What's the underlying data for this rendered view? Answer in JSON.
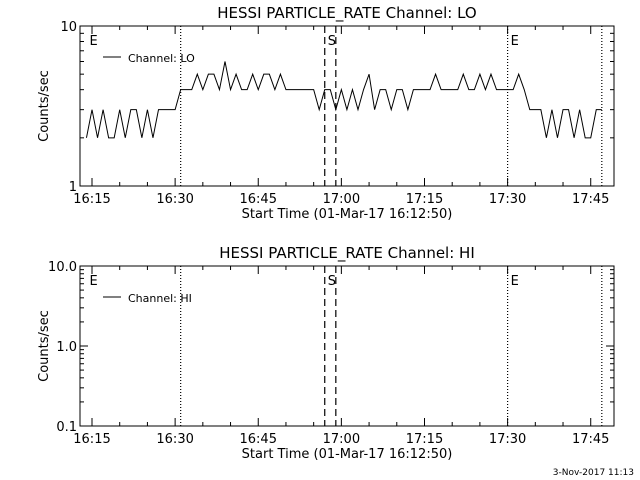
{
  "footer_date": "3-Nov-2017 11:13",
  "chart_data": [
    {
      "type": "line",
      "title": "HESSI PARTICLE_RATE Channel: LO",
      "xlabel": "Start Time (01-Mar-17 16:12:50)",
      "ylabel": "Counts/sec",
      "yscale": "log",
      "ylim": [
        1,
        10
      ],
      "xlim_minutes": [
        16.2,
        17.82
      ],
      "xtick_labels": [
        "16:15",
        "16:30",
        "16:45",
        "17:00",
        "17:15",
        "17:30",
        "17:45"
      ],
      "ytick_labels": [
        {
          "value": 1,
          "label": "1"
        },
        {
          "value": 10,
          "label": "10"
        }
      ],
      "legend": {
        "label": "Channel: LO",
        "placement": "top-left"
      },
      "markers": [
        {
          "label": "E",
          "time": "16:14",
          "style": "none"
        },
        {
          "label": "",
          "time": "16:31",
          "style": "dotted"
        },
        {
          "label": "S",
          "time": "16:57",
          "style": "dashed"
        },
        {
          "label": "",
          "time": "16:59",
          "style": "dashed"
        },
        {
          "label": "E",
          "time": "17:30",
          "style": "dotted"
        },
        {
          "label": "",
          "time": "17:47",
          "style": "dotted"
        }
      ],
      "series": [
        {
          "name": "Channel: LO",
          "x": [
            "16:14",
            "16:15",
            "16:16",
            "16:17",
            "16:18",
            "16:19",
            "16:20",
            "16:21",
            "16:22",
            "16:23",
            "16:24",
            "16:25",
            "16:26",
            "16:27",
            "16:28",
            "16:29",
            "16:30",
            "16:31",
            "16:32",
            "16:33",
            "16:34",
            "16:35",
            "16:36",
            "16:37",
            "16:38",
            "16:39",
            "16:40",
            "16:41",
            "16:42",
            "16:43",
            "16:44",
            "16:45",
            "16:46",
            "16:47",
            "16:48",
            "16:49",
            "16:50",
            "16:51",
            "16:52",
            "16:53",
            "16:54",
            "16:55",
            "16:56",
            "16:57",
            "16:58",
            "16:59",
            "17:00",
            "17:01",
            "17:02",
            "17:03",
            "17:04",
            "17:05",
            "17:06",
            "17:07",
            "17:08",
            "17:09",
            "17:10",
            "17:11",
            "17:12",
            "17:13",
            "17:14",
            "17:15",
            "17:16",
            "17:17",
            "17:18",
            "17:19",
            "17:20",
            "17:21",
            "17:22",
            "17:23",
            "17:24",
            "17:25",
            "17:26",
            "17:27",
            "17:28",
            "17:29",
            "17:30",
            "17:31",
            "17:32",
            "17:33",
            "17:34",
            "17:35",
            "17:36",
            "17:37",
            "17:38",
            "17:39",
            "17:40",
            "17:41",
            "17:42",
            "17:43",
            "17:44",
            "17:45",
            "17:46",
            "17:47"
          ],
          "y": [
            2,
            3,
            2,
            3,
            2,
            2,
            3,
            2,
            3,
            3,
            2,
            3,
            2,
            3,
            3,
            3,
            3,
            4,
            4,
            4,
            5,
            4,
            5,
            5,
            4,
            6,
            4,
            5,
            4,
            4,
            5,
            4,
            5,
            5,
            4,
            5,
            4,
            4,
            4,
            4,
            4,
            4,
            3,
            4,
            4,
            3,
            4,
            3,
            4,
            3,
            4,
            5,
            3,
            4,
            4,
            3,
            4,
            4,
            3,
            4,
            4,
            4,
            4,
            5,
            4,
            4,
            4,
            4,
            5,
            4,
            4,
            5,
            4,
            5,
            4,
            4,
            4,
            4,
            5,
            4,
            3,
            3,
            3,
            2,
            3,
            2,
            3,
            3,
            2,
            3,
            2,
            2,
            3,
            3
          ]
        }
      ]
    },
    {
      "type": "line",
      "title": "HESSI PARTICLE_RATE Channel: HI",
      "xlabel": "Start Time (01-Mar-17 16:12:50)",
      "ylabel": "Counts/sec",
      "yscale": "log",
      "ylim": [
        0.1,
        10
      ],
      "xlim_minutes": [
        16.2,
        17.82
      ],
      "xtick_labels": [
        "16:15",
        "16:30",
        "16:45",
        "17:00",
        "17:15",
        "17:30",
        "17:45"
      ],
      "ytick_labels": [
        {
          "value": 0.1,
          "label": "0.1"
        },
        {
          "value": 1,
          "label": "1.0"
        },
        {
          "value": 10,
          "label": "10.0"
        }
      ],
      "legend": {
        "label": "Channel: HI",
        "placement": "top-left"
      },
      "markers": [
        {
          "label": "E",
          "time": "16:14",
          "style": "none"
        },
        {
          "label": "",
          "time": "16:31",
          "style": "dotted"
        },
        {
          "label": "S",
          "time": "16:57",
          "style": "dashed"
        },
        {
          "label": "",
          "time": "16:59",
          "style": "dashed"
        },
        {
          "label": "E",
          "time": "17:30",
          "style": "dotted"
        },
        {
          "label": "",
          "time": "17:47",
          "style": "dotted"
        }
      ],
      "series": [
        {
          "name": "Channel: HI",
          "x": [],
          "y": []
        }
      ]
    }
  ]
}
